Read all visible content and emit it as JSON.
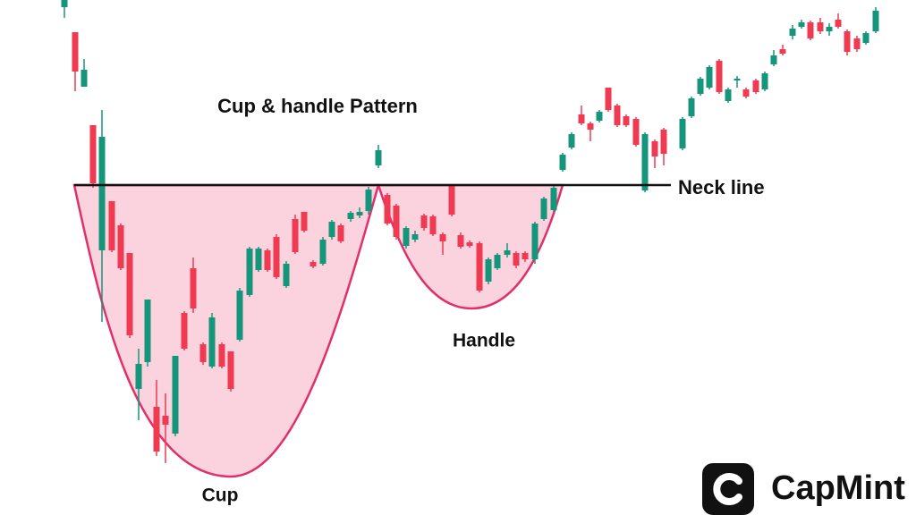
{
  "title": "Cup & handle Pattern",
  "labels": {
    "neck_line": "Neck line",
    "handle": "Handle",
    "cup": "Cup"
  },
  "logo": {
    "text": "CapMint"
  }
}
